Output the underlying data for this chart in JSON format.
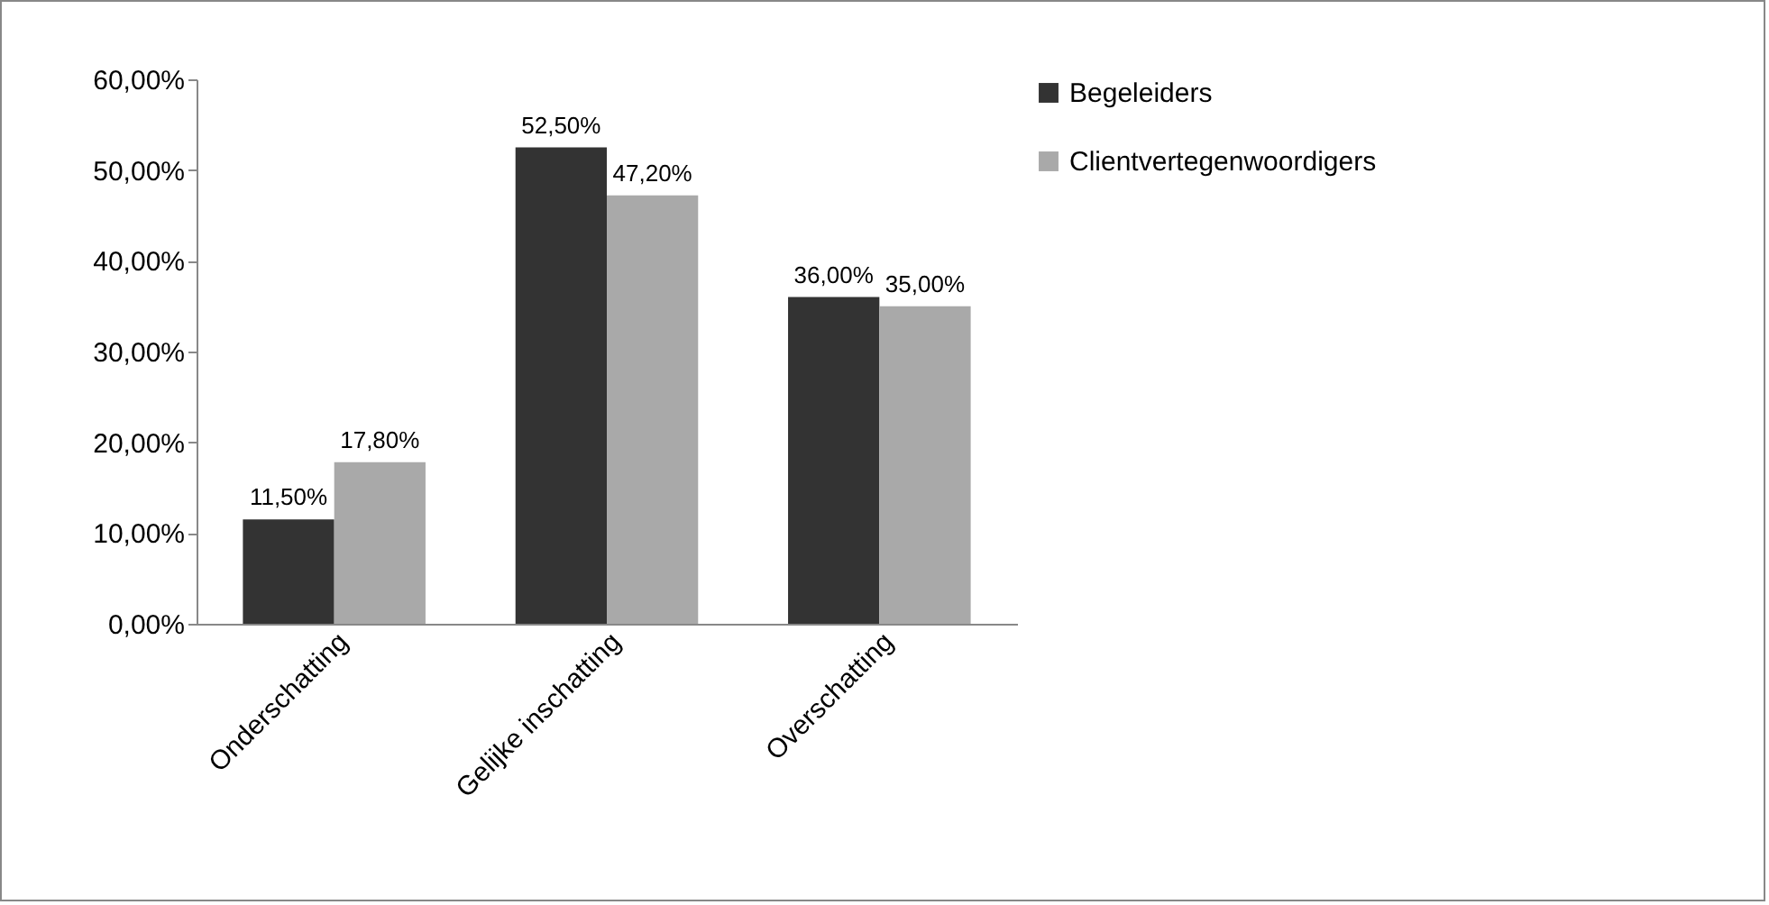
{
  "chart_data": {
    "type": "bar",
    "categories": [
      "Onderschatting",
      "Gelijke inschatting",
      "Overschatting"
    ],
    "series": [
      {
        "name": "Begeleiders",
        "color": "#333333",
        "values": [
          11.5,
          52.5,
          36.0
        ],
        "value_labels": [
          "11,50%",
          "52,50%",
          "36,00%"
        ]
      },
      {
        "name": "Clientvertegenwoordigers",
        "color": "#a9a9a9",
        "values": [
          17.8,
          47.2,
          35.0
        ],
        "value_labels": [
          "17,80%",
          "47,20%",
          "35,00%"
        ]
      }
    ],
    "ylim": [
      0,
      60
    ],
    "yticks": [
      {
        "value": 0,
        "label": "0,00%"
      },
      {
        "value": 10,
        "label": "10,00%"
      },
      {
        "value": 20,
        "label": "20,00%"
      },
      {
        "value": 30,
        "label": "30,00%"
      },
      {
        "value": 40,
        "label": "40,00%"
      },
      {
        "value": 50,
        "label": "50,00%"
      },
      {
        "value": 60,
        "label": "60,00%"
      }
    ],
    "grid": false,
    "legend": "right"
  }
}
